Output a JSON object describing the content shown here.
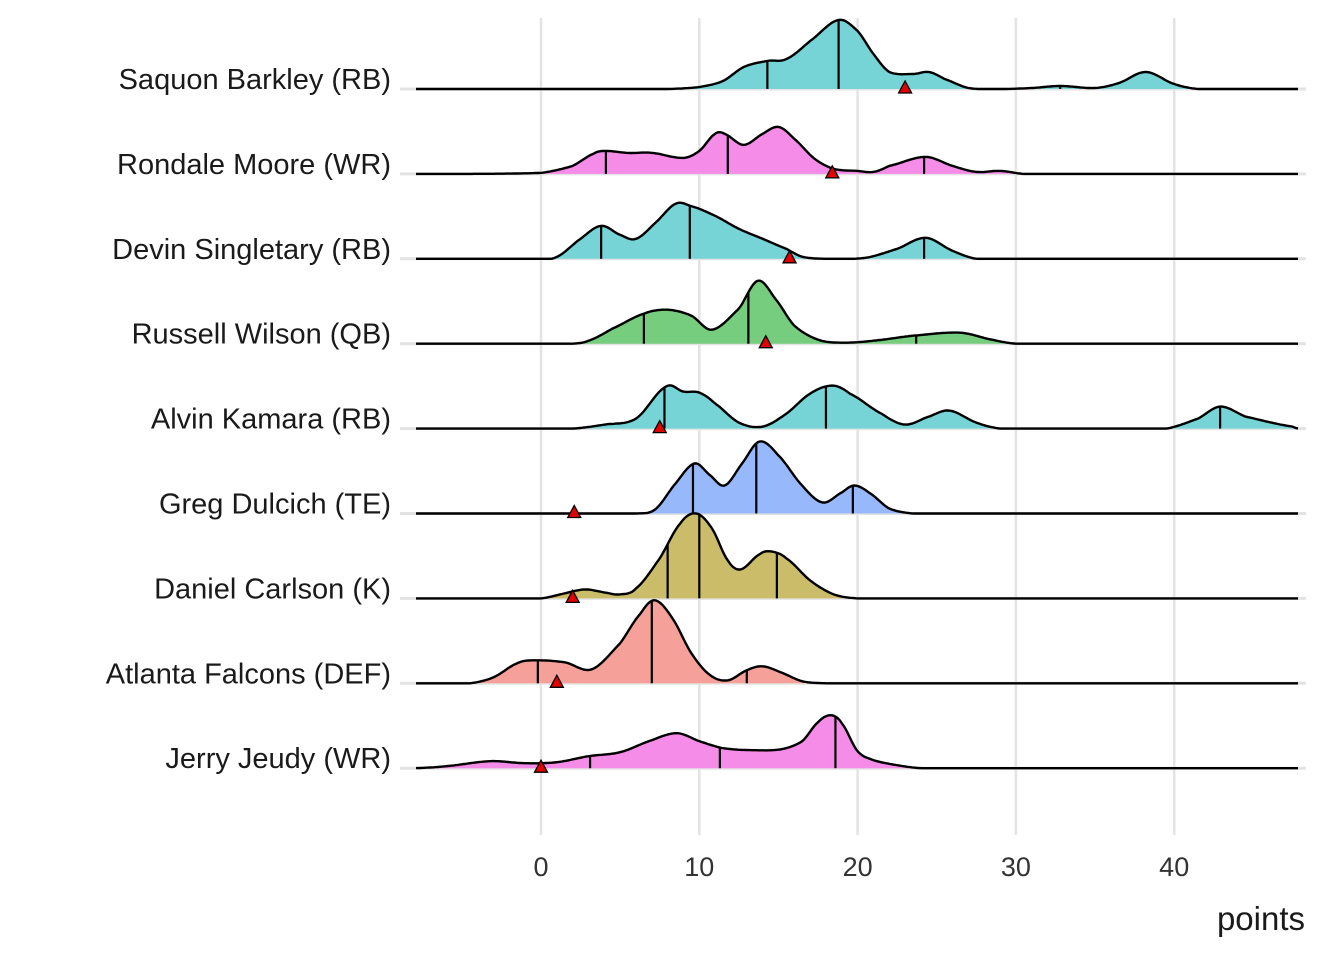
{
  "chart_data": {
    "type": "ridgeline",
    "title": "",
    "xlabel": "points",
    "ylabel": "",
    "xlim": [
      -8,
      48
    ],
    "xticks": [
      0,
      10,
      20,
      30,
      40
    ],
    "grid": true,
    "legend": "none",
    "series": [
      {
        "name": "Saquon Barkley (RB)",
        "color": "#76d3d6",
        "density": [
          [
            -8,
            0
          ],
          [
            8,
            0
          ],
          [
            10,
            2
          ],
          [
            11.5,
            8
          ],
          [
            12.8,
            22
          ],
          [
            14.3,
            28
          ],
          [
            15.5,
            30
          ],
          [
            17,
            48
          ],
          [
            18.8,
            69
          ],
          [
            20,
            58
          ],
          [
            21,
            35
          ],
          [
            22,
            17
          ],
          [
            23.5,
            15
          ],
          [
            24.5,
            17
          ],
          [
            25.5,
            10
          ],
          [
            27,
            1
          ],
          [
            29,
            0
          ],
          [
            31,
            1
          ],
          [
            32.8,
            3
          ],
          [
            35,
            1
          ],
          [
            36.5,
            6
          ],
          [
            38.2,
            17
          ],
          [
            40,
            5
          ],
          [
            41.5,
            0
          ],
          [
            48,
            0
          ]
        ],
        "quantiles": [
          14.3,
          18.8,
          32.8
        ],
        "actual": 23.0
      },
      {
        "name": "Rondale Moore (WR)",
        "color": "#f48ce8",
        "density": [
          [
            -8,
            0
          ],
          [
            0,
            1
          ],
          [
            2,
            8
          ],
          [
            3.3,
            20
          ],
          [
            4,
            23
          ],
          [
            5.5,
            21
          ],
          [
            7,
            21
          ],
          [
            9,
            16
          ],
          [
            10,
            23
          ],
          [
            11,
            40
          ],
          [
            11.6,
            40
          ],
          [
            12.8,
            29
          ],
          [
            14,
            40
          ],
          [
            15,
            47
          ],
          [
            16,
            35
          ],
          [
            17.3,
            15
          ],
          [
            18.5,
            5
          ],
          [
            20,
            3
          ],
          [
            21,
            2
          ],
          [
            22,
            8
          ],
          [
            24.3,
            17
          ],
          [
            26,
            8
          ],
          [
            27.5,
            2
          ],
          [
            29,
            3
          ],
          [
            30.5,
            0
          ],
          [
            48,
            0
          ]
        ],
        "quantiles": [
          4.1,
          11.8,
          24.2
        ],
        "actual": 18.4
      },
      {
        "name": "Devin Singletary (RB)",
        "color": "#76d3d6",
        "density": [
          [
            -8,
            0
          ],
          [
            0,
            0
          ],
          [
            1,
            2
          ],
          [
            2.5,
            20
          ],
          [
            3.8,
            33
          ],
          [
            5,
            24
          ],
          [
            6,
            20
          ],
          [
            7.3,
            37
          ],
          [
            8.5,
            55
          ],
          [
            9.4,
            53
          ],
          [
            11,
            43
          ],
          [
            12.5,
            30
          ],
          [
            14,
            20
          ],
          [
            15.5,
            10
          ],
          [
            16.5,
            2
          ],
          [
            18,
            0
          ],
          [
            20.5,
            1
          ],
          [
            22.5,
            10
          ],
          [
            24.3,
            21
          ],
          [
            26,
            8
          ],
          [
            27.5,
            0
          ],
          [
            48,
            0
          ]
        ],
        "quantiles": [
          3.8,
          9.4,
          24.2
        ],
        "actual": 15.7
      },
      {
        "name": "Russell Wilson (QB)",
        "color": "#75cd7d",
        "density": [
          [
            -8,
            0
          ],
          [
            2,
            0
          ],
          [
            3,
            3
          ],
          [
            4.5,
            15
          ],
          [
            6.5,
            30
          ],
          [
            8,
            34
          ],
          [
            9.5,
            28
          ],
          [
            10.8,
            14
          ],
          [
            12.5,
            35
          ],
          [
            13.7,
            63
          ],
          [
            14.8,
            45
          ],
          [
            16,
            18
          ],
          [
            17.5,
            4
          ],
          [
            19,
            1
          ],
          [
            21,
            3
          ],
          [
            23.5,
            8
          ],
          [
            26.5,
            11
          ],
          [
            28.5,
            4
          ],
          [
            30,
            0
          ],
          [
            48,
            0
          ]
        ],
        "quantiles": [
          6.5,
          13.1,
          23.7
        ],
        "actual": 14.2
      },
      {
        "name": "Alvin Kamara (RB)",
        "color": "#76d3d6",
        "density": [
          [
            -8,
            0
          ],
          [
            2,
            0
          ],
          [
            4,
            4
          ],
          [
            6,
            10
          ],
          [
            7.9,
            42
          ],
          [
            9,
            37
          ],
          [
            10,
            36
          ],
          [
            11,
            25
          ],
          [
            12.5,
            6
          ],
          [
            14,
            2
          ],
          [
            15.5,
            15
          ],
          [
            17,
            35
          ],
          [
            18.4,
            43
          ],
          [
            19.5,
            35
          ],
          [
            21.5,
            15
          ],
          [
            23,
            4
          ],
          [
            24.5,
            12
          ],
          [
            25.8,
            18
          ],
          [
            27.5,
            6
          ],
          [
            29,
            0
          ],
          [
            39.5,
            0
          ],
          [
            41.5,
            10
          ],
          [
            42.9,
            22
          ],
          [
            44.5,
            12
          ],
          [
            47.5,
            2
          ],
          [
            48,
            0
          ]
        ],
        "quantiles": [
          7.8,
          18.0,
          42.9
        ],
        "actual": 7.5
      },
      {
        "name": "Greg Dulcich (TE)",
        "color": "#97b8fb",
        "density": [
          [
            -8,
            0
          ],
          [
            6,
            0
          ],
          [
            7.2,
            4
          ],
          [
            8.5,
            30
          ],
          [
            9.7,
            50
          ],
          [
            10.7,
            38
          ],
          [
            11.6,
            28
          ],
          [
            12.7,
            50
          ],
          [
            13.8,
            72
          ],
          [
            15,
            58
          ],
          [
            16.5,
            28
          ],
          [
            17.8,
            11
          ],
          [
            19,
            21
          ],
          [
            19.8,
            28
          ],
          [
            20.8,
            20
          ],
          [
            22,
            5
          ],
          [
            23.5,
            0
          ],
          [
            48,
            0
          ]
        ],
        "quantiles": [
          9.6,
          13.6,
          19.7
        ],
        "actual": 2.1
      },
      {
        "name": "Daniel Carlson (K)",
        "color": "#cbbc6a",
        "density": [
          [
            -8,
            0
          ],
          [
            0,
            0
          ],
          [
            1.5,
            5
          ],
          [
            2.8,
            9
          ],
          [
            4,
            6
          ],
          [
            5,
            4
          ],
          [
            6,
            10
          ],
          [
            7.5,
            40
          ],
          [
            8.8,
            75
          ],
          [
            9.8,
            85
          ],
          [
            10.8,
            70
          ],
          [
            11.8,
            38
          ],
          [
            12.6,
            29
          ],
          [
            13.8,
            44
          ],
          [
            14.5,
            47
          ],
          [
            15.5,
            40
          ],
          [
            17,
            18
          ],
          [
            18.5,
            4
          ],
          [
            20,
            0
          ],
          [
            48,
            0
          ]
        ],
        "quantiles": [
          8.0,
          10.0,
          14.9
        ],
        "actual": 2.0
      },
      {
        "name": "Atlanta Falcons (DEF)",
        "color": "#f6a09a",
        "density": [
          [
            -8,
            0
          ],
          [
            -4.5,
            0
          ],
          [
            -3,
            6
          ],
          [
            -1.5,
            20
          ],
          [
            -0.5,
            23
          ],
          [
            1.5,
            21
          ],
          [
            3.2,
            14
          ],
          [
            5,
            40
          ],
          [
            6.3,
            70
          ],
          [
            7.2,
            83
          ],
          [
            8.3,
            65
          ],
          [
            9.5,
            30
          ],
          [
            10.7,
            8
          ],
          [
            11.8,
            3
          ],
          [
            13,
            13
          ],
          [
            14,
            17
          ],
          [
            15.3,
            10
          ],
          [
            16.5,
            2
          ],
          [
            18,
            0
          ],
          [
            48,
            0
          ]
        ],
        "quantiles": [
          -0.2,
          7.0,
          13.0
        ],
        "actual": 1.0
      },
      {
        "name": "Jerry Jeudy (WR)",
        "color": "#f48ce8",
        "density": [
          [
            -8,
            0
          ],
          [
            -6,
            2
          ],
          [
            -3.2,
            7
          ],
          [
            -1,
            5
          ],
          [
            1,
            6
          ],
          [
            3,
            12
          ],
          [
            5,
            16
          ],
          [
            7,
            28
          ],
          [
            8.6,
            35
          ],
          [
            10,
            27
          ],
          [
            11.5,
            20
          ],
          [
            13.5,
            18
          ],
          [
            15.2,
            19
          ],
          [
            16.5,
            27
          ],
          [
            17.5,
            46
          ],
          [
            18.3,
            53
          ],
          [
            19,
            45
          ],
          [
            20,
            17
          ],
          [
            21,
            8
          ],
          [
            22.5,
            3
          ],
          [
            24,
            0
          ],
          [
            48,
            0
          ]
        ],
        "quantiles": [
          3.1,
          11.3,
          18.6
        ],
        "actual": 0.0
      }
    ],
    "marker_color": "#e00000"
  }
}
